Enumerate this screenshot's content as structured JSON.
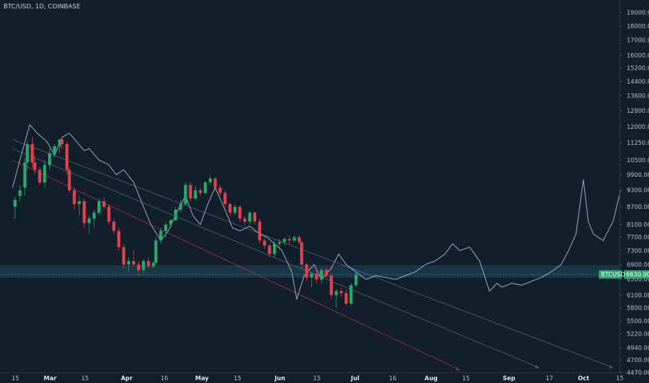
{
  "header": {
    "symbol_title": "BTC/USD, 1D, COINBASE"
  },
  "colors": {
    "background": "#131e2b",
    "up_candle": "#28a86b",
    "down_candle": "#e1414f",
    "overlay_line": "#8aa8c8",
    "price_label_bg": "#2fa66e",
    "support_band": "#1d3b4c",
    "trendline_red": "#d8464c",
    "trendline_blue": "#5f7e9d",
    "axis_text": "#b6bfcc"
  },
  "price_scale": {
    "ticks": [
      "19000.00",
      "18000.00",
      "17000.00",
      "16000.00",
      "15200.00",
      "14400.00",
      "13600.00",
      "12800.00",
      "12000.00",
      "11250.00",
      "10500.00",
      "9900.00",
      "9300.00",
      "8700.00",
      "8100.00",
      "7700.00",
      "7300.00",
      "6900.00",
      "6500.00",
      "6100.00",
      "5800.00",
      "5500.00",
      "5220.00",
      "4940.00",
      "4700.00",
      "4470.00"
    ],
    "current_price_label": "6630.00",
    "symbol_badge": "BTCUSD"
  },
  "time_scale": {
    "labels": [
      {
        "text": "15",
        "major": false
      },
      {
        "text": "Mar",
        "major": true
      },
      {
        "text": "15",
        "major": false
      },
      {
        "text": "Apr",
        "major": true
      },
      {
        "text": "16",
        "major": false
      },
      {
        "text": "May",
        "major": true
      },
      {
        "text": "15",
        "major": false
      },
      {
        "text": "Jun",
        "major": true
      },
      {
        "text": "15",
        "major": false
      },
      {
        "text": "Jul",
        "major": true
      },
      {
        "text": "16",
        "major": false
      },
      {
        "text": "Aug",
        "major": true
      },
      {
        "text": "15",
        "major": false
      },
      {
        "text": "Sep",
        "major": true
      },
      {
        "text": "17",
        "major": false
      },
      {
        "text": "Oct",
        "major": true
      },
      {
        "text": "15",
        "major": false
      }
    ]
  },
  "chart_data": {
    "type": "line",
    "title": "BTC/USD, 1D, COINBASE",
    "scale": "log",
    "ylim": [
      4470,
      19000
    ],
    "x_range": [
      "2018-02-13",
      "2018-10-17"
    ],
    "support_zone": [
      6550,
      6880
    ],
    "current_price": 6630,
    "candles": [
      {
        "date": "2018-02-14",
        "o": 8700,
        "h": 9050,
        "l": 8300,
        "c": 8950
      },
      {
        "date": "2018-02-16",
        "o": 9100,
        "h": 9500,
        "l": 8900,
        "c": 9300
      },
      {
        "date": "2018-02-18",
        "o": 9400,
        "h": 10600,
        "l": 9100,
        "c": 10400
      },
      {
        "date": "2018-02-19",
        "o": 10400,
        "h": 11350,
        "l": 10100,
        "c": 11200
      },
      {
        "date": "2018-02-21",
        "o": 11200,
        "h": 11500,
        "l": 10200,
        "c": 10400
      },
      {
        "date": "2018-02-22",
        "o": 10400,
        "h": 10700,
        "l": 9900,
        "c": 10100
      },
      {
        "date": "2018-02-24",
        "o": 10100,
        "h": 10200,
        "l": 9500,
        "c": 9600
      },
      {
        "date": "2018-02-26",
        "o": 9600,
        "h": 10500,
        "l": 9400,
        "c": 10300
      },
      {
        "date": "2018-02-28",
        "o": 10300,
        "h": 11000,
        "l": 10100,
        "c": 10800
      },
      {
        "date": "2018-03-02",
        "o": 10800,
        "h": 11200,
        "l": 10600,
        "c": 11100
      },
      {
        "date": "2018-03-04",
        "o": 11100,
        "h": 11450,
        "l": 10800,
        "c": 11400
      },
      {
        "date": "2018-03-05",
        "o": 11400,
        "h": 11550,
        "l": 11000,
        "c": 11200
      },
      {
        "date": "2018-03-07",
        "o": 11200,
        "h": 11300,
        "l": 9900,
        "c": 10100
      },
      {
        "date": "2018-03-08",
        "o": 10100,
        "h": 10200,
        "l": 9200,
        "c": 9300
      },
      {
        "date": "2018-03-10",
        "o": 9300,
        "h": 9400,
        "l": 8600,
        "c": 8800
      },
      {
        "date": "2018-03-12",
        "o": 8800,
        "h": 9100,
        "l": 8400,
        "c": 8900
      },
      {
        "date": "2018-03-14",
        "o": 8900,
        "h": 9000,
        "l": 8000,
        "c": 8150
      },
      {
        "date": "2018-03-16",
        "o": 8150,
        "h": 8400,
        "l": 7800,
        "c": 8300
      },
      {
        "date": "2018-03-18",
        "o": 8300,
        "h": 8600,
        "l": 8000,
        "c": 8500
      },
      {
        "date": "2018-03-20",
        "o": 8500,
        "h": 9000,
        "l": 8400,
        "c": 8900
      },
      {
        "date": "2018-03-22",
        "o": 8900,
        "h": 9050,
        "l": 8600,
        "c": 8700
      },
      {
        "date": "2018-03-24",
        "o": 8700,
        "h": 8800,
        "l": 8100,
        "c": 8200
      },
      {
        "date": "2018-03-26",
        "o": 8200,
        "h": 8300,
        "l": 7800,
        "c": 7900
      },
      {
        "date": "2018-03-28",
        "o": 7900,
        "h": 8000,
        "l": 7300,
        "c": 7400
      },
      {
        "date": "2018-03-30",
        "o": 7400,
        "h": 7500,
        "l": 6800,
        "c": 6900
      },
      {
        "date": "2018-04-01",
        "o": 6900,
        "h": 7100,
        "l": 6700,
        "c": 7000
      },
      {
        "date": "2018-04-03",
        "o": 7000,
        "h": 7300,
        "l": 6850,
        "c": 6900
      },
      {
        "date": "2018-04-05",
        "o": 6900,
        "h": 7000,
        "l": 6600,
        "c": 6750
      },
      {
        "date": "2018-04-07",
        "o": 6750,
        "h": 7050,
        "l": 6650,
        "c": 7000
      },
      {
        "date": "2018-04-09",
        "o": 7000,
        "h": 7100,
        "l": 6800,
        "c": 6850
      },
      {
        "date": "2018-04-11",
        "o": 6850,
        "h": 7000,
        "l": 6800,
        "c": 6950
      },
      {
        "date": "2018-04-12",
        "o": 6950,
        "h": 7700,
        "l": 6900,
        "c": 7600
      },
      {
        "date": "2018-04-14",
        "o": 7600,
        "h": 8000,
        "l": 7500,
        "c": 7900
      },
      {
        "date": "2018-04-16",
        "o": 7900,
        "h": 8200,
        "l": 7700,
        "c": 8100
      },
      {
        "date": "2018-04-18",
        "o": 8100,
        "h": 8300,
        "l": 8000,
        "c": 8250
      },
      {
        "date": "2018-04-20",
        "o": 8250,
        "h": 8700,
        "l": 8200,
        "c": 8600
      },
      {
        "date": "2018-04-22",
        "o": 8600,
        "h": 8950,
        "l": 8500,
        "c": 8800
      },
      {
        "date": "2018-04-24",
        "o": 8800,
        "h": 9600,
        "l": 8750,
        "c": 9500
      },
      {
        "date": "2018-04-26",
        "o": 9500,
        "h": 9600,
        "l": 8900,
        "c": 9000
      },
      {
        "date": "2018-04-28",
        "o": 9000,
        "h": 9450,
        "l": 8950,
        "c": 9300
      },
      {
        "date": "2018-04-30",
        "o": 9300,
        "h": 9400,
        "l": 9100,
        "c": 9200
      },
      {
        "date": "2018-05-02",
        "o": 9200,
        "h": 9650,
        "l": 9150,
        "c": 9600
      },
      {
        "date": "2018-05-04",
        "o": 9600,
        "h": 9900,
        "l": 9500,
        "c": 9750
      },
      {
        "date": "2018-05-06",
        "o": 9750,
        "h": 9800,
        "l": 9300,
        "c": 9400
      },
      {
        "date": "2018-05-08",
        "o": 9400,
        "h": 9500,
        "l": 9100,
        "c": 9200
      },
      {
        "date": "2018-05-10",
        "o": 9200,
        "h": 9300,
        "l": 8700,
        "c": 8800
      },
      {
        "date": "2018-05-12",
        "o": 8800,
        "h": 8850,
        "l": 8400,
        "c": 8500
      },
      {
        "date": "2018-05-14",
        "o": 8500,
        "h": 8800,
        "l": 8400,
        "c": 8700
      },
      {
        "date": "2018-05-16",
        "o": 8700,
        "h": 8750,
        "l": 8200,
        "c": 8300
      },
      {
        "date": "2018-05-18",
        "o": 8300,
        "h": 8400,
        "l": 8050,
        "c": 8200
      },
      {
        "date": "2018-05-20",
        "o": 8200,
        "h": 8550,
        "l": 8100,
        "c": 8500
      },
      {
        "date": "2018-05-22",
        "o": 8500,
        "h": 8550,
        "l": 8100,
        "c": 8200
      },
      {
        "date": "2018-05-24",
        "o": 8200,
        "h": 8300,
        "l": 7500,
        "c": 7600
      },
      {
        "date": "2018-05-26",
        "o": 7600,
        "h": 7700,
        "l": 7350,
        "c": 7450
      },
      {
        "date": "2018-05-28",
        "o": 7450,
        "h": 7500,
        "l": 7100,
        "c": 7200
      },
      {
        "date": "2018-05-30",
        "o": 7200,
        "h": 7600,
        "l": 7100,
        "c": 7500
      },
      {
        "date": "2018-06-01",
        "o": 7500,
        "h": 7650,
        "l": 7350,
        "c": 7550
      },
      {
        "date": "2018-06-03",
        "o": 7550,
        "h": 7700,
        "l": 7450,
        "c": 7650
      },
      {
        "date": "2018-06-05",
        "o": 7650,
        "h": 7750,
        "l": 7500,
        "c": 7600
      },
      {
        "date": "2018-06-07",
        "o": 7600,
        "h": 7750,
        "l": 7550,
        "c": 7700
      },
      {
        "date": "2018-06-09",
        "o": 7700,
        "h": 7750,
        "l": 7500,
        "c": 7550
      },
      {
        "date": "2018-06-10",
        "o": 7550,
        "h": 7600,
        "l": 6800,
        "c": 6900
      },
      {
        "date": "2018-06-12",
        "o": 6900,
        "h": 6950,
        "l": 6450,
        "c": 6550
      },
      {
        "date": "2018-06-14",
        "o": 6550,
        "h": 6700,
        "l": 6300,
        "c": 6650
      },
      {
        "date": "2018-06-16",
        "o": 6650,
        "h": 6800,
        "l": 6400,
        "c": 6500
      },
      {
        "date": "2018-06-18",
        "o": 6500,
        "h": 6800,
        "l": 6400,
        "c": 6750
      },
      {
        "date": "2018-06-20",
        "o": 6750,
        "h": 6800,
        "l": 6550,
        "c": 6600
      },
      {
        "date": "2018-06-22",
        "o": 6600,
        "h": 6650,
        "l": 6000,
        "c": 6100
      },
      {
        "date": "2018-06-24",
        "o": 6100,
        "h": 6250,
        "l": 5800,
        "c": 6200
      },
      {
        "date": "2018-06-26",
        "o": 6200,
        "h": 6300,
        "l": 6050,
        "c": 6150
      },
      {
        "date": "2018-06-28",
        "o": 6150,
        "h": 6250,
        "l": 5850,
        "c": 5900
      },
      {
        "date": "2018-06-30",
        "o": 5900,
        "h": 6400,
        "l": 5850,
        "c": 6350
      },
      {
        "date": "2018-07-02",
        "o": 6350,
        "h": 6700,
        "l": 6300,
        "c": 6630
      }
    ],
    "overlay_series": {
      "x": [
        "2018-02-13",
        "2018-02-17",
        "2018-02-20",
        "2018-02-23",
        "2018-02-27",
        "2018-03-02",
        "2018-03-05",
        "2018-03-08",
        "2018-03-11",
        "2018-03-14",
        "2018-03-16",
        "2018-03-20",
        "2018-03-24",
        "2018-03-27",
        "2018-03-30",
        "2018-04-03",
        "2018-04-07",
        "2018-04-10",
        "2018-04-14",
        "2018-04-17",
        "2018-04-21",
        "2018-04-24",
        "2018-04-27",
        "2018-04-30",
        "2018-05-03",
        "2018-05-06",
        "2018-05-10",
        "2018-05-13",
        "2018-05-16",
        "2018-05-20",
        "2018-05-24",
        "2018-05-27",
        "2018-05-30",
        "2018-06-02",
        "2018-06-06",
        "2018-06-08",
        "2018-06-11",
        "2018-06-15",
        "2018-06-18",
        "2018-06-22",
        "2018-06-25",
        "2018-06-28",
        "2018-07-02",
        "2018-07-06",
        "2018-07-10",
        "2018-07-14",
        "2018-07-18",
        "2018-07-22",
        "2018-07-26",
        "2018-07-30",
        "2018-08-03",
        "2018-08-07",
        "2018-08-10",
        "2018-08-13",
        "2018-08-17",
        "2018-08-21",
        "2018-08-25",
        "2018-08-28",
        "2018-08-30",
        "2018-09-03",
        "2018-09-07",
        "2018-09-11",
        "2018-09-15",
        "2018-09-19",
        "2018-09-23",
        "2018-09-26",
        "2018-09-29",
        "2018-10-02",
        "2018-10-04",
        "2018-10-06",
        "2018-10-08",
        "2018-10-10",
        "2018-10-12",
        "2018-10-14",
        "2018-10-16",
        "2018-10-17"
      ],
      "y": [
        9400,
        10900,
        12100,
        11700,
        11300,
        10700,
        11500,
        11700,
        11300,
        10900,
        11000,
        10500,
        10300,
        9900,
        10100,
        9600,
        8700,
        8100,
        7600,
        7900,
        8600,
        9100,
        8400,
        8100,
        8800,
        9400,
        8600,
        8000,
        7900,
        8050,
        7800,
        7700,
        7500,
        7300,
        6700,
        6000,
        6600,
        6900,
        6500,
        6800,
        7200,
        6900,
        6700,
        6500,
        6600,
        6550,
        6500,
        6600,
        6700,
        6900,
        7000,
        7200,
        7500,
        7300,
        7400,
        7000,
        6200,
        6400,
        6300,
        6400,
        6350,
        6450,
        6550,
        6700,
        6900,
        7300,
        7800,
        9700,
        8200,
        7800,
        7700,
        7600,
        7900,
        8200,
        8900,
        9300
      ]
    },
    "trendlines": [
      {
        "color": "red",
        "from": {
          "date": "2018-02-13",
          "price": 10500
        },
        "to": {
          "date": "2018-08-13",
          "price": 4520
        }
      },
      {
        "color": "blue",
        "from": {
          "date": "2018-02-13",
          "price": 11000
        },
        "to": {
          "date": "2018-09-14",
          "price": 4560
        }
      },
      {
        "color": "blue",
        "from": {
          "date": "2018-02-13",
          "price": 11400
        },
        "to": {
          "date": "2018-10-14",
          "price": 4560
        }
      }
    ]
  }
}
